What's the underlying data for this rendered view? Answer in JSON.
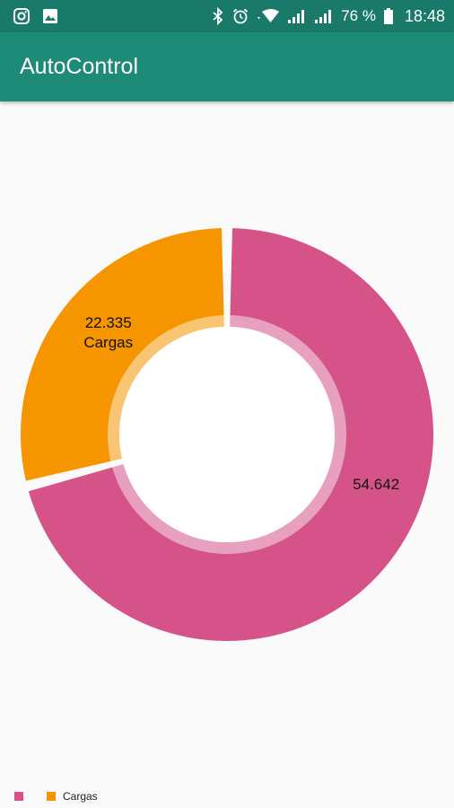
{
  "status_bar": {
    "left_icons": [
      "instagram-icon",
      "image-icon"
    ],
    "right_icons": [
      "bluetooth-icon",
      "alarm-icon",
      "wifi-icon",
      "signal-icon",
      "signal-icon-2",
      "battery-icon"
    ],
    "battery": "76 %",
    "time": "18:48",
    "color": "#1a7a6a"
  },
  "app_bar": {
    "title": "AutoControl",
    "color": "#1e8a78"
  },
  "chart_data": {
    "type": "pie",
    "style": "donut",
    "title": "",
    "series": [
      {
        "name": "",
        "value": 54.642,
        "value_label": "54.642",
        "slice_label": "",
        "color": "#d6538a"
      },
      {
        "name": "Cargas",
        "value": 22.335,
        "value_label": "22.335",
        "slice_label": "Cargas",
        "color": "#f59500"
      }
    ],
    "legend": {
      "placement": "bottom-left",
      "entries": [
        {
          "label": "",
          "color": "#d6538a"
        },
        {
          "label": "Cargas",
          "color": "#f59500"
        }
      ]
    }
  }
}
